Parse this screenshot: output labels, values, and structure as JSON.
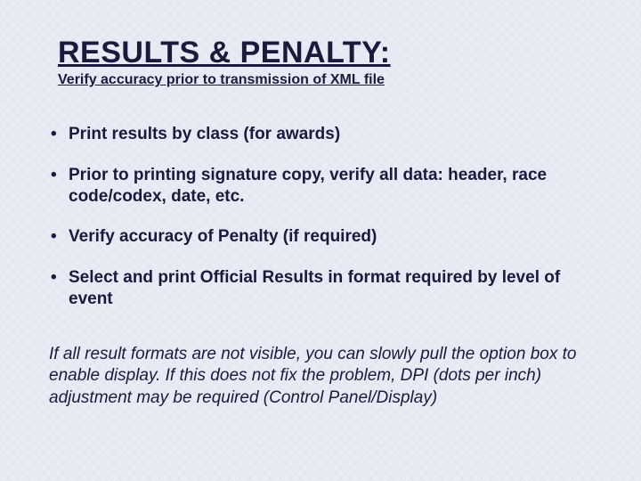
{
  "slide": {
    "title": "RESULTS & PENALTY:",
    "subtitle": "Verify accuracy prior to transmission of XML file",
    "bullets": [
      "Print results by class (for awards)",
      "Prior to printing signature copy, verify all data: header, race code/codex, date, etc.",
      "Verify accuracy of Penalty (if required)",
      "Select and print Official Results in format required by level of event"
    ],
    "footnote": "If all result formats are not visible, you can slowly pull the option box to enable display.  If this does not fix the problem,  DPI (dots per inch) adjustment may be required (Control Panel/Display)",
    "style": {
      "background_color": "#e8ecf5",
      "text_color": "#1a1a3d",
      "title_fontsize": 34,
      "subtitle_fontsize": 16,
      "body_fontsize": 19,
      "font_family": "Arial",
      "title_underline": true,
      "subtitle_underline": true,
      "bullet_char": "•"
    }
  }
}
